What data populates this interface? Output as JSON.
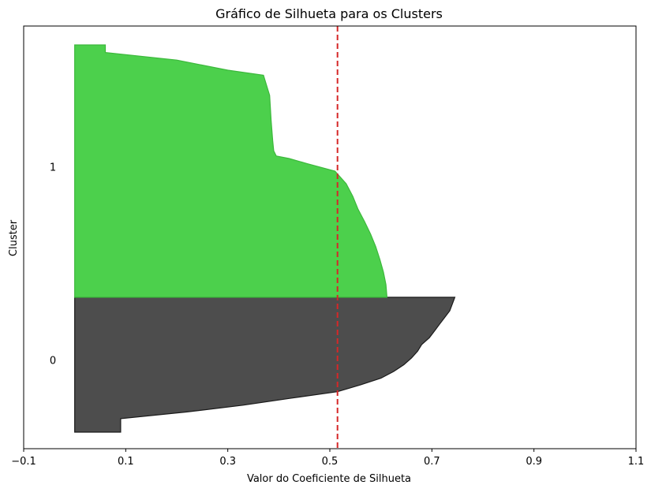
{
  "chart_data": {
    "type": "area",
    "title": "Gráfico de Silhueta para os Clusters",
    "xlabel": "Valor do Coeficiente de Silhueta",
    "ylabel": "Cluster",
    "xlim": [
      -0.1,
      1.1
    ],
    "xticks": [
      -0.1,
      0.1,
      0.3,
      0.5,
      0.7,
      0.9,
      1.1
    ],
    "xtick_labels": [
      "−0.1",
      "0.1",
      "0.3",
      "0.5",
      "0.7",
      "0.9",
      "1.1"
    ],
    "grid": false,
    "average_silhouette": 0.515,
    "average_line_color": "#d62728",
    "clusters": [
      {
        "label": "0",
        "color": "#4d4d4d",
        "edge_color": "#1a1a1a",
        "profile": [
          [
            0.0,
            0.745
          ],
          [
            0.05,
            0.74
          ],
          [
            0.1,
            0.735
          ],
          [
            0.15,
            0.725
          ],
          [
            0.2,
            0.715
          ],
          [
            0.25,
            0.705
          ],
          [
            0.3,
            0.695
          ],
          [
            0.35,
            0.68
          ],
          [
            0.4,
            0.672
          ],
          [
            0.45,
            0.66
          ],
          [
            0.5,
            0.645
          ],
          [
            0.55,
            0.625
          ],
          [
            0.6,
            0.6
          ],
          [
            0.65,
            0.56
          ],
          [
            0.7,
            0.515
          ],
          [
            0.75,
            0.42
          ],
          [
            0.8,
            0.33
          ],
          [
            0.85,
            0.22
          ],
          [
            0.9,
            0.09
          ],
          [
            1.0,
            0.09
          ]
        ]
      },
      {
        "label": "1",
        "color": "#4cd04c",
        "edge_color": "#3cb83c",
        "profile": [
          [
            0.0,
            0.06
          ],
          [
            0.03,
            0.06
          ],
          [
            0.06,
            0.2
          ],
          [
            0.1,
            0.3
          ],
          [
            0.12,
            0.37
          ],
          [
            0.2,
            0.382
          ],
          [
            0.3,
            0.385
          ],
          [
            0.38,
            0.388
          ],
          [
            0.42,
            0.39
          ],
          [
            0.44,
            0.395
          ],
          [
            0.45,
            0.42
          ],
          [
            0.47,
            0.455
          ],
          [
            0.5,
            0.51
          ],
          [
            0.55,
            0.532
          ],
          [
            0.6,
            0.545
          ],
          [
            0.65,
            0.555
          ],
          [
            0.7,
            0.568
          ],
          [
            0.75,
            0.58
          ],
          [
            0.8,
            0.59
          ],
          [
            0.85,
            0.598
          ],
          [
            0.9,
            0.605
          ],
          [
            0.95,
            0.61
          ],
          [
            1.0,
            0.612
          ]
        ]
      }
    ]
  }
}
